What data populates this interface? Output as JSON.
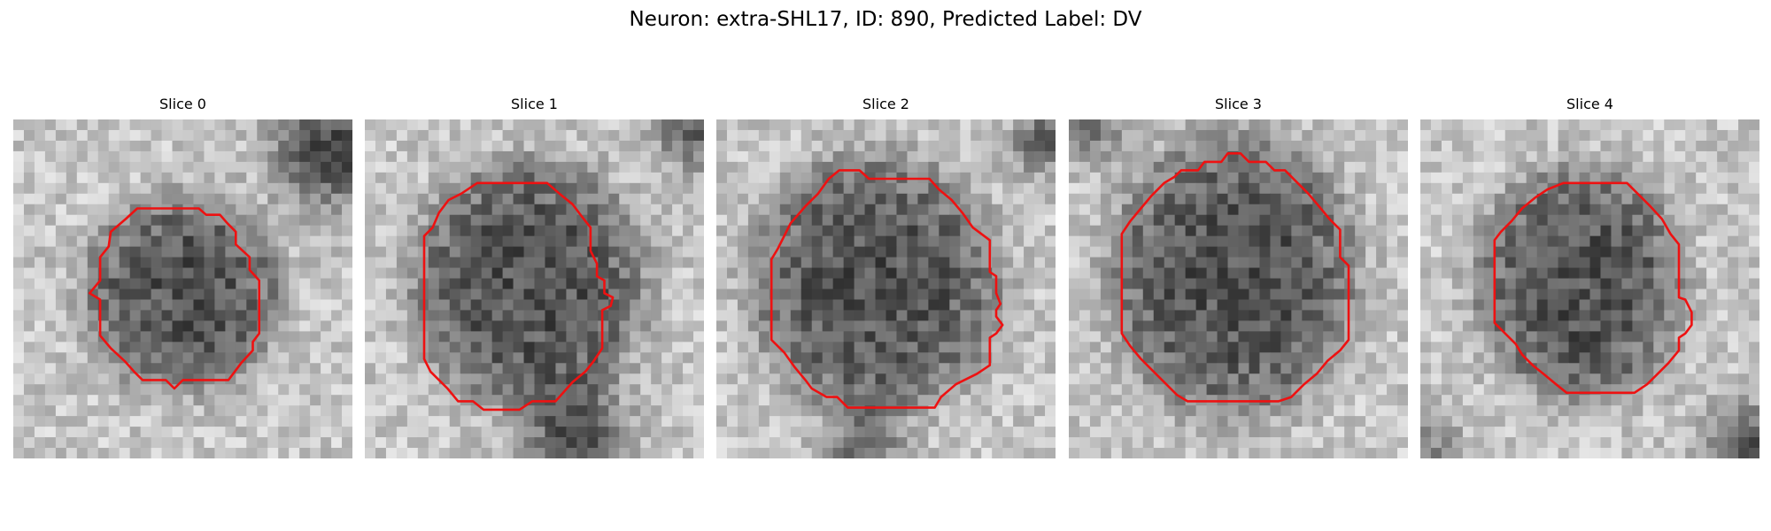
{
  "figure": {
    "title": "Neuron: extra-SHL17, ID: 890, Predicted Label: DV"
  },
  "colors": {
    "contour": "#ee1111",
    "background": "#ffffff",
    "image_colormap": "grayscale"
  },
  "panels": [
    {
      "title": "Slice 0",
      "content": "grayscale-microscopy-slice-with-red-contour"
    },
    {
      "title": "Slice 1",
      "content": "grayscale-microscopy-slice-with-red-contour"
    },
    {
      "title": "Slice 2",
      "content": "grayscale-microscopy-slice-with-red-contour"
    },
    {
      "title": "Slice 3",
      "content": "grayscale-microscopy-slice-with-red-contour"
    },
    {
      "title": "Slice 4",
      "content": "grayscale-microscopy-slice-with-red-contour"
    }
  ]
}
